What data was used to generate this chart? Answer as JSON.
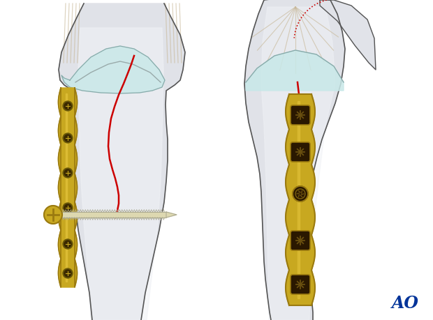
{
  "bg_color": "#ffffff",
  "bone_color": "#e0e2e8",
  "bone_inner": "#f0f2f6",
  "bone_edge_color": "#555555",
  "cartilage_color": "#c8e8e8",
  "gold_color": "#c8a820",
  "gold_dark": "#9a7a10",
  "gold_light": "#e8c840",
  "screw_color": "#ddd8b0",
  "screw_thread": "#aaa890",
  "red_line_color": "#cc0000",
  "tendon_color": "#c8b898",
  "ao_color": "#003399"
}
